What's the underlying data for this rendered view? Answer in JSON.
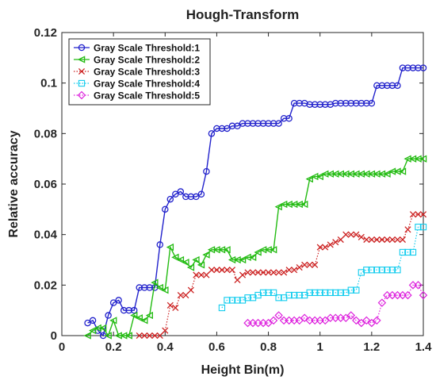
{
  "chart_data": {
    "type": "line",
    "title": "Hough-Transform",
    "xlabel": "Height Bin(m)",
    "ylabel": "Relative accuracy",
    "xlim": [
      0,
      1.4
    ],
    "ylim": [
      0,
      0.12
    ],
    "xticks": [
      "0",
      "0.2",
      "0.4",
      "0.6",
      "0.8",
      "1",
      "1.2",
      "1.4"
    ],
    "yticks": [
      "0",
      "0.02",
      "0.04",
      "0.06",
      "0.08",
      "0.1",
      "0.12"
    ],
    "grid": false,
    "legend_position": "top-left",
    "series": [
      {
        "name": "Gray Scale Threshold:1",
        "color": "#2222cc",
        "marker": "circle",
        "line_style": "solid",
        "x": [
          0.1,
          0.12,
          0.14,
          0.16,
          0.18,
          0.2,
          0.22,
          0.24,
          0.26,
          0.28,
          0.3,
          0.32,
          0.34,
          0.36,
          0.38,
          0.4,
          0.42,
          0.44,
          0.46,
          0.48,
          0.5,
          0.52,
          0.54,
          0.56,
          0.58,
          0.6,
          0.62,
          0.64,
          0.66,
          0.68,
          0.7,
          0.72,
          0.74,
          0.76,
          0.78,
          0.8,
          0.82,
          0.84,
          0.86,
          0.88,
          0.9,
          0.92,
          0.94,
          0.96,
          0.98,
          1.0,
          1.02,
          1.04,
          1.06,
          1.08,
          1.1,
          1.12,
          1.14,
          1.16,
          1.18,
          1.2,
          1.22,
          1.24,
          1.26,
          1.28,
          1.3,
          1.32,
          1.34,
          1.36,
          1.38,
          1.4
        ],
        "y": [
          0.005,
          0.006,
          0.002,
          0.0,
          0.008,
          0.013,
          0.014,
          0.01,
          0.01,
          0.01,
          0.019,
          0.019,
          0.019,
          0.019,
          0.036,
          0.05,
          0.054,
          0.056,
          0.057,
          0.055,
          0.055,
          0.055,
          0.056,
          0.065,
          0.08,
          0.082,
          0.082,
          0.082,
          0.083,
          0.083,
          0.084,
          0.084,
          0.084,
          0.084,
          0.084,
          0.084,
          0.084,
          0.084,
          0.086,
          0.086,
          0.092,
          0.092,
          0.092,
          0.0915,
          0.0915,
          0.0915,
          0.0915,
          0.0915,
          0.092,
          0.092,
          0.092,
          0.092,
          0.092,
          0.092,
          0.092,
          0.092,
          0.099,
          0.099,
          0.099,
          0.099,
          0.099,
          0.106,
          0.106,
          0.106,
          0.106,
          0.106
        ]
      },
      {
        "name": "Gray Scale Threshold:2",
        "color": "#22bb11",
        "marker": "triangle-left",
        "line_style": "solid",
        "x": [
          0.1,
          0.12,
          0.14,
          0.16,
          0.18,
          0.2,
          0.22,
          0.24,
          0.26,
          0.28,
          0.3,
          0.32,
          0.34,
          0.36,
          0.38,
          0.4,
          0.42,
          0.44,
          0.46,
          0.48,
          0.5,
          0.52,
          0.54,
          0.56,
          0.58,
          0.6,
          0.62,
          0.64,
          0.66,
          0.68,
          0.7,
          0.72,
          0.74,
          0.76,
          0.78,
          0.8,
          0.82,
          0.84,
          0.86,
          0.88,
          0.9,
          0.92,
          0.94,
          0.96,
          0.98,
          1.0,
          1.02,
          1.04,
          1.06,
          1.08,
          1.1,
          1.12,
          1.14,
          1.16,
          1.18,
          1.2,
          1.22,
          1.24,
          1.26,
          1.28,
          1.3,
          1.32,
          1.34,
          1.36,
          1.38,
          1.4
        ],
        "y": [
          0.0,
          0.002,
          0.003,
          0.003,
          0.0,
          0.006,
          0.0,
          0.0,
          0.0,
          0.008,
          0.007,
          0.006,
          0.008,
          0.021,
          0.019,
          0.018,
          0.035,
          0.031,
          0.03,
          0.029,
          0.027,
          0.03,
          0.028,
          0.032,
          0.034,
          0.034,
          0.034,
          0.034,
          0.03,
          0.03,
          0.03,
          0.031,
          0.031,
          0.033,
          0.034,
          0.034,
          0.034,
          0.051,
          0.052,
          0.052,
          0.052,
          0.052,
          0.052,
          0.062,
          0.063,
          0.063,
          0.064,
          0.064,
          0.064,
          0.064,
          0.064,
          0.064,
          0.064,
          0.064,
          0.064,
          0.064,
          0.064,
          0.064,
          0.064,
          0.065,
          0.065,
          0.065,
          0.07,
          0.07,
          0.07,
          0.07
        ]
      },
      {
        "name": "Gray Scale Threshold:3",
        "color": "#cc2222",
        "marker": "x",
        "line_style": "dotted",
        "x": [
          0.3,
          0.32,
          0.34,
          0.36,
          0.38,
          0.4,
          0.42,
          0.44,
          0.46,
          0.48,
          0.5,
          0.52,
          0.54,
          0.56,
          0.58,
          0.6,
          0.62,
          0.64,
          0.66,
          0.68,
          0.7,
          0.72,
          0.74,
          0.76,
          0.78,
          0.8,
          0.82,
          0.84,
          0.86,
          0.88,
          0.9,
          0.92,
          0.94,
          0.96,
          0.98,
          1.0,
          1.02,
          1.04,
          1.06,
          1.08,
          1.1,
          1.12,
          1.14,
          1.16,
          1.18,
          1.2,
          1.22,
          1.24,
          1.26,
          1.28,
          1.3,
          1.32,
          1.34,
          1.36,
          1.38,
          1.4
        ],
        "y": [
          0.0,
          0.0,
          0.0,
          0.0,
          0.0,
          0.002,
          0.012,
          0.011,
          0.016,
          0.016,
          0.018,
          0.024,
          0.024,
          0.024,
          0.026,
          0.026,
          0.026,
          0.026,
          0.026,
          0.022,
          0.024,
          0.025,
          0.025,
          0.025,
          0.025,
          0.025,
          0.025,
          0.025,
          0.025,
          0.026,
          0.026,
          0.027,
          0.028,
          0.028,
          0.028,
          0.035,
          0.035,
          0.036,
          0.037,
          0.038,
          0.04,
          0.04,
          0.04,
          0.039,
          0.038,
          0.038,
          0.038,
          0.038,
          0.038,
          0.038,
          0.038,
          0.038,
          0.042,
          0.048,
          0.048,
          0.048
        ]
      },
      {
        "name": "Gray Scale Threshold:4",
        "color": "#11ccee",
        "marker": "square",
        "line_style": "dotted",
        "x": [
          0.62,
          0.64,
          0.66,
          0.68,
          0.7,
          0.72,
          0.74,
          0.76,
          0.78,
          0.8,
          0.82,
          0.84,
          0.86,
          0.88,
          0.9,
          0.92,
          0.94,
          0.96,
          0.98,
          1.0,
          1.02,
          1.04,
          1.06,
          1.08,
          1.1,
          1.12,
          1.14,
          1.16,
          1.18,
          1.2,
          1.22,
          1.24,
          1.26,
          1.28,
          1.3,
          1.32,
          1.34,
          1.36,
          1.38,
          1.4
        ],
        "y": [
          0.011,
          0.014,
          0.014,
          0.014,
          0.014,
          0.015,
          0.015,
          0.016,
          0.017,
          0.017,
          0.017,
          0.015,
          0.015,
          0.016,
          0.016,
          0.016,
          0.016,
          0.017,
          0.017,
          0.017,
          0.017,
          0.017,
          0.017,
          0.017,
          0.017,
          0.018,
          0.018,
          0.025,
          0.026,
          0.026,
          0.026,
          0.026,
          0.026,
          0.026,
          0.026,
          0.033,
          0.033,
          0.033,
          0.043,
          0.043
        ]
      },
      {
        "name": "Gray Scale Threshold:5",
        "color": "#dd22dd",
        "marker": "diamond",
        "line_style": "dotted",
        "x": [
          0.72,
          0.74,
          0.76,
          0.78,
          0.8,
          0.82,
          0.84,
          0.86,
          0.88,
          0.9,
          0.92,
          0.94,
          0.96,
          0.98,
          1.0,
          1.02,
          1.04,
          1.06,
          1.08,
          1.1,
          1.12,
          1.14,
          1.16,
          1.18,
          1.2,
          1.22,
          1.24,
          1.26,
          1.28,
          1.3,
          1.32,
          1.34,
          1.36,
          1.38,
          1.4
        ],
        "y": [
          0.005,
          0.005,
          0.005,
          0.005,
          0.005,
          0.006,
          0.008,
          0.006,
          0.006,
          0.006,
          0.006,
          0.007,
          0.006,
          0.006,
          0.006,
          0.006,
          0.007,
          0.007,
          0.007,
          0.007,
          0.008,
          0.006,
          0.005,
          0.006,
          0.005,
          0.006,
          0.013,
          0.016,
          0.016,
          0.016,
          0.016,
          0.016,
          0.02,
          0.02,
          0.016
        ]
      }
    ]
  }
}
